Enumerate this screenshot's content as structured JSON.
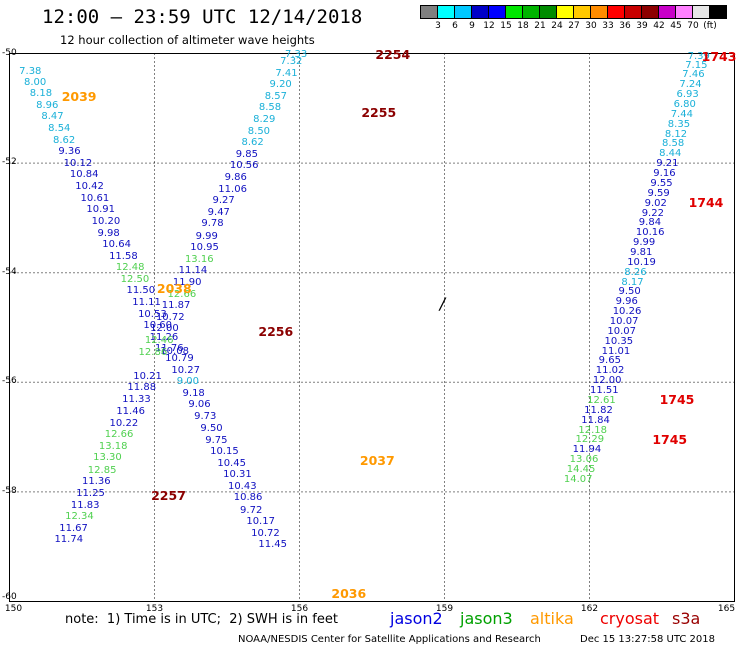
{
  "title": "12:00 — 23:59 UTC 12/14/2018",
  "subtitle": "12 hour collection of altimeter wave heights",
  "colorbar": {
    "colors": [
      "#808080",
      "#00ffff",
      "#00c8ff",
      "#0000c8",
      "#0000ff",
      "#00e600",
      "#00b400",
      "#008c00",
      "#ffff00",
      "#ffc800",
      "#ff8c00",
      "#ff0000",
      "#c80000",
      "#8c0000",
      "#c800c8",
      "#ff80ff",
      "#e6e6e6",
      "#000000"
    ],
    "labels": [
      "3",
      "6",
      "9",
      "12",
      "15",
      "18",
      "21",
      "24",
      "27",
      "30",
      "33",
      "36",
      "39",
      "42",
      "45",
      "70",
      "(ft)"
    ]
  },
  "axes": {
    "x_ticks": [
      "150",
      "153",
      "156",
      "159",
      "162",
      "165"
    ],
    "y_ticks": [
      "-50",
      "-52",
      "-54",
      "-56",
      "-58",
      "-60"
    ]
  },
  "note": "note:  1) Time is in UTC;  2) SWH is in feet",
  "legend": [
    {
      "name": "jason2",
      "color": "#0000e0"
    },
    {
      "name": "jason3",
      "color": "#00a000"
    },
    {
      "name": "altika",
      "color": "#ff9900"
    },
    {
      "name": "cryosat",
      "color": "#ee0000"
    },
    {
      "name": "s3a",
      "color": "#990000"
    }
  ],
  "footer": {
    "center": "NOAA/NESDIS Center for Satellite Applications and Research",
    "right": "Dec 15 13:27:58 UTC 2018"
  },
  "colors": {
    "cyan": "#1ab0d8",
    "blue": "#1010c0",
    "green": "#50d050",
    "orange": "#ff9900",
    "red": "#e00000",
    "darkred": "#8b0000"
  },
  "passes": [
    {
      "label": "2039",
      "color": "orange",
      "lon": 151.08,
      "lat": -50.8
    },
    {
      "label": "2038",
      "color": "orange",
      "lon": 153.05,
      "lat": -54.3
    },
    {
      "label": "2037",
      "color": "orange",
      "lon": 157.25,
      "lat": -57.43
    },
    {
      "label": "2036",
      "color": "orange",
      "lon": 156.66,
      "lat": -59.87
    },
    {
      "label": "2254",
      "color": "darkred",
      "lon": 157.57,
      "lat": -50.02
    },
    {
      "label": "2255",
      "color": "darkred",
      "lon": 157.28,
      "lat": -51.08
    },
    {
      "label": "2256",
      "color": "darkred",
      "lon": 155.15,
      "lat": -55.08
    },
    {
      "label": "2257",
      "color": "darkred",
      "lon": 152.93,
      "lat": -58.08
    },
    {
      "label": "1743",
      "color": "red",
      "lon": 164.32,
      "lat": -50.07
    },
    {
      "label": "1744",
      "color": "red",
      "lon": 164.05,
      "lat": -52.72
    },
    {
      "label": "1745",
      "color": "red",
      "lon": 163.45,
      "lat": -56.33
    },
    {
      "label": "1745",
      "color": "red",
      "lon": 163.3,
      "lat": -57.05
    }
  ],
  "tracks": [
    {
      "name": "track-2039",
      "points": [
        {
          "v": "7.38",
          "lon": 150.2,
          "lat": -50.33,
          "c": "cyan"
        },
        {
          "v": "8.00",
          "lon": 150.3,
          "lat": -50.53,
          "c": "cyan"
        },
        {
          "v": "8.18",
          "lon": 150.42,
          "lat": -50.74,
          "c": "cyan"
        },
        {
          "v": "8.96",
          "lon": 150.55,
          "lat": -50.95,
          "c": "cyan"
        },
        {
          "v": "8.47",
          "lon": 150.66,
          "lat": -51.16,
          "c": "cyan"
        },
        {
          "v": "8.54",
          "lon": 150.8,
          "lat": -51.38,
          "c": "cyan"
        },
        {
          "v": "8.62",
          "lon": 150.9,
          "lat": -51.59,
          "c": "cyan"
        },
        {
          "v": "9.36",
          "lon": 151.01,
          "lat": -51.8,
          "c": "blue"
        },
        {
          "v": "10.12",
          "lon": 151.12,
          "lat": -52.01,
          "c": "blue"
        },
        {
          "v": "10.84",
          "lon": 151.25,
          "lat": -52.22,
          "c": "blue"
        },
        {
          "v": "10.42",
          "lon": 151.36,
          "lat": -52.44,
          "c": "blue"
        },
        {
          "v": "10.61",
          "lon": 151.47,
          "lat": -52.65,
          "c": "blue"
        },
        {
          "v": "10.91",
          "lon": 151.59,
          "lat": -52.86,
          "c": "blue"
        },
        {
          "v": "10.20",
          "lon": 151.7,
          "lat": -53.07,
          "c": "blue"
        },
        {
          "v": "9.98",
          "lon": 151.82,
          "lat": -53.29,
          "c": "blue"
        },
        {
          "v": "10.64",
          "lon": 151.92,
          "lat": -53.5,
          "c": "blue"
        },
        {
          "v": "11.58",
          "lon": 152.06,
          "lat": -53.71,
          "c": "blue"
        },
        {
          "v": "12.48",
          "lon": 152.2,
          "lat": -53.92,
          "c": "green"
        },
        {
          "v": "12.50",
          "lon": 152.3,
          "lat": -54.13,
          "c": "green"
        },
        {
          "v": "11.50",
          "lon": 152.42,
          "lat": -54.34,
          "c": "blue"
        },
        {
          "v": "11.11",
          "lon": 152.54,
          "lat": -54.55,
          "c": "blue"
        },
        {
          "v": "10.53",
          "lon": 152.66,
          "lat": -54.77,
          "c": "blue"
        },
        {
          "v": "10.60",
          "lon": 152.77,
          "lat": -54.98,
          "c": "blue"
        },
        {
          "v": "11.26",
          "lon": 152.9,
          "lat": -55.19,
          "c": "blue"
        },
        {
          "v": "11.76",
          "lon": 153.01,
          "lat": -55.39,
          "c": "blue"
        },
        {
          "v": "10.08",
          "lon": 153.12,
          "lat": -55.45,
          "c": "blue"
        },
        {
          "v": "10.79",
          "lon": 153.22,
          "lat": -55.57,
          "c": "blue"
        },
        {
          "v": "10.27",
          "lon": 153.35,
          "lat": -55.79,
          "c": "blue"
        },
        {
          "v": "9.00",
          "lon": 153.46,
          "lat": -56.0,
          "c": "cyan"
        },
        {
          "v": "9.18",
          "lon": 153.58,
          "lat": -56.21,
          "c": "blue"
        },
        {
          "v": "9.06",
          "lon": 153.7,
          "lat": -56.42,
          "c": "blue"
        },
        {
          "v": "9.73",
          "lon": 153.82,
          "lat": -56.64,
          "c": "blue"
        },
        {
          "v": "9.50",
          "lon": 153.95,
          "lat": -56.86,
          "c": "blue"
        },
        {
          "v": "9.75",
          "lon": 154.05,
          "lat": -57.07,
          "c": "blue"
        },
        {
          "v": "10.15",
          "lon": 154.15,
          "lat": -57.28,
          "c": "blue"
        },
        {
          "v": "10.45",
          "lon": 154.3,
          "lat": -57.49,
          "c": "blue"
        },
        {
          "v": "10.31",
          "lon": 154.42,
          "lat": -57.7,
          "c": "blue"
        },
        {
          "v": "10.43",
          "lon": 154.52,
          "lat": -57.91,
          "c": "blue"
        },
        {
          "v": "10.86",
          "lon": 154.64,
          "lat": -58.12,
          "c": "blue"
        },
        {
          "v": "9.72",
          "lon": 154.77,
          "lat": -58.34,
          "c": "blue"
        },
        {
          "v": "10.17",
          "lon": 154.9,
          "lat": -58.55,
          "c": "blue"
        },
        {
          "v": "10.72",
          "lon": 155.0,
          "lat": -58.76,
          "c": "blue"
        },
        {
          "v": "11.45",
          "lon": 155.15,
          "lat": -58.97,
          "c": "blue"
        }
      ]
    },
    {
      "name": "track-2254",
      "points": [
        {
          "v": "7.33",
          "lon": 155.7,
          "lat": -50.03,
          "c": "cyan"
        },
        {
          "v": "7.32",
          "lon": 155.6,
          "lat": -50.15,
          "c": "cyan"
        },
        {
          "v": "7.41",
          "lon": 155.5,
          "lat": -50.37,
          "c": "cyan"
        },
        {
          "v": "9.20",
          "lon": 155.38,
          "lat": -50.58,
          "c": "cyan"
        },
        {
          "v": "8.57",
          "lon": 155.28,
          "lat": -50.79,
          "c": "cyan"
        },
        {
          "v": "8.58",
          "lon": 155.16,
          "lat": -51.0,
          "c": "cyan"
        },
        {
          "v": "8.29",
          "lon": 155.04,
          "lat": -51.22,
          "c": "cyan"
        },
        {
          "v": "8.50",
          "lon": 154.93,
          "lat": -51.43,
          "c": "cyan"
        },
        {
          "v": "8.62",
          "lon": 154.8,
          "lat": -51.64,
          "c": "cyan"
        },
        {
          "v": "9.85",
          "lon": 154.68,
          "lat": -51.85,
          "c": "blue"
        },
        {
          "v": "10.56",
          "lon": 154.56,
          "lat": -52.06,
          "c": "blue"
        },
        {
          "v": "9.86",
          "lon": 154.45,
          "lat": -52.28,
          "c": "blue"
        },
        {
          "v": "11.06",
          "lon": 154.32,
          "lat": -52.49,
          "c": "blue"
        },
        {
          "v": "9.27",
          "lon": 154.2,
          "lat": -52.7,
          "c": "blue"
        },
        {
          "v": "9.47",
          "lon": 154.1,
          "lat": -52.91,
          "c": "blue"
        },
        {
          "v": "9.78",
          "lon": 153.97,
          "lat": -53.12,
          "c": "blue"
        },
        {
          "v": "9.99",
          "lon": 153.85,
          "lat": -53.34,
          "c": "blue"
        },
        {
          "v": "10.95",
          "lon": 153.74,
          "lat": -53.55,
          "c": "blue"
        },
        {
          "v": "13.16",
          "lon": 153.63,
          "lat": -53.76,
          "c": "green"
        },
        {
          "v": "11.14",
          "lon": 153.5,
          "lat": -53.97,
          "c": "blue"
        },
        {
          "v": "11.90",
          "lon": 153.38,
          "lat": -54.19,
          "c": "blue"
        },
        {
          "v": "12.66",
          "lon": 153.27,
          "lat": -54.4,
          "c": "green"
        },
        {
          "v": "11.87",
          "lon": 153.15,
          "lat": -54.61,
          "c": "blue"
        },
        {
          "v": "10.72",
          "lon": 153.03,
          "lat": -54.82,
          "c": "blue"
        },
        {
          "v": "12.00",
          "lon": 152.91,
          "lat": -55.03,
          "c": "blue"
        },
        {
          "v": "12.46",
          "lon": 152.8,
          "lat": -55.25,
          "c": "green"
        },
        {
          "v": "12.86",
          "lon": 152.67,
          "lat": -55.46,
          "c": "green"
        },
        {
          "v": "10.21",
          "lon": 152.56,
          "lat": -55.9,
          "c": "blue"
        },
        {
          "v": "11.88",
          "lon": 152.44,
          "lat": -56.11,
          "c": "blue"
        },
        {
          "v": "11.33",
          "lon": 152.33,
          "lat": -56.33,
          "c": "blue"
        },
        {
          "v": "11.46",
          "lon": 152.21,
          "lat": -56.54,
          "c": "blue"
        },
        {
          "v": "10.22",
          "lon": 152.07,
          "lat": -56.76,
          "c": "blue"
        },
        {
          "v": "12.66",
          "lon": 151.97,
          "lat": -56.97,
          "c": "green"
        },
        {
          "v": "13.18",
          "lon": 151.85,
          "lat": -57.18,
          "c": "green"
        },
        {
          "v": "13.30",
          "lon": 151.73,
          "lat": -57.39,
          "c": "green"
        },
        {
          "v": "12.85",
          "lon": 151.62,
          "lat": -57.61,
          "c": "green"
        },
        {
          "v": "11.36",
          "lon": 151.5,
          "lat": -57.82,
          "c": "blue"
        },
        {
          "v": "11.25",
          "lon": 151.38,
          "lat": -58.04,
          "c": "blue"
        },
        {
          "v": "11.83",
          "lon": 151.27,
          "lat": -58.25,
          "c": "blue"
        },
        {
          "v": "12.34",
          "lon": 151.15,
          "lat": -58.46,
          "c": "green"
        },
        {
          "v": "11.67",
          "lon": 151.03,
          "lat": -58.67,
          "c": "blue"
        },
        {
          "v": "11.74",
          "lon": 150.93,
          "lat": -58.88,
          "c": "blue"
        }
      ]
    },
    {
      "name": "track-1743",
      "points": [
        {
          "v": "7.39",
          "lon": 164.03,
          "lat": -50.07,
          "c": "cyan"
        },
        {
          "v": "7.15",
          "lon": 163.98,
          "lat": -50.22,
          "c": "cyan"
        },
        {
          "v": "7.46",
          "lon": 163.92,
          "lat": -50.4,
          "c": "cyan"
        },
        {
          "v": "7.24",
          "lon": 163.86,
          "lat": -50.58,
          "c": "cyan"
        },
        {
          "v": "6.93",
          "lon": 163.8,
          "lat": -50.76,
          "c": "cyan"
        },
        {
          "v": "6.80",
          "lon": 163.74,
          "lat": -50.94,
          "c": "cyan"
        },
        {
          "v": "7.44",
          "lon": 163.68,
          "lat": -51.12,
          "c": "cyan"
        },
        {
          "v": "8.35",
          "lon": 163.62,
          "lat": -51.3,
          "c": "cyan"
        },
        {
          "v": "8.12",
          "lon": 163.56,
          "lat": -51.48,
          "c": "cyan"
        },
        {
          "v": "8.58",
          "lon": 163.5,
          "lat": -51.66,
          "c": "cyan"
        },
        {
          "v": "8.44",
          "lon": 163.44,
          "lat": -51.84,
          "c": "cyan"
        },
        {
          "v": "9.21",
          "lon": 163.38,
          "lat": -52.02,
          "c": "blue"
        },
        {
          "v": "9.16",
          "lon": 163.32,
          "lat": -52.2,
          "c": "blue"
        },
        {
          "v": "9.55",
          "lon": 163.26,
          "lat": -52.38,
          "c": "blue"
        },
        {
          "v": "9.59",
          "lon": 163.2,
          "lat": -52.56,
          "c": "blue"
        },
        {
          "v": "9.02",
          "lon": 163.14,
          "lat": -52.74,
          "c": "blue"
        },
        {
          "v": "9.22",
          "lon": 163.08,
          "lat": -52.92,
          "c": "blue"
        },
        {
          "v": "9.84",
          "lon": 163.02,
          "lat": -53.1,
          "c": "blue"
        },
        {
          "v": "10.16",
          "lon": 162.96,
          "lat": -53.28,
          "c": "blue"
        },
        {
          "v": "9.99",
          "lon": 162.9,
          "lat": -53.46,
          "c": "blue"
        },
        {
          "v": "9.81",
          "lon": 162.84,
          "lat": -53.64,
          "c": "blue"
        },
        {
          "v": "10.19",
          "lon": 162.78,
          "lat": -53.82,
          "c": "blue"
        },
        {
          "v": "8.26",
          "lon": 162.72,
          "lat": -54.0,
          "c": "cyan"
        },
        {
          "v": "8.17",
          "lon": 162.66,
          "lat": -54.18,
          "c": "cyan"
        },
        {
          "v": "9.50",
          "lon": 162.6,
          "lat": -54.36,
          "c": "blue"
        },
        {
          "v": "9.96",
          "lon": 162.54,
          "lat": -54.54,
          "c": "blue"
        },
        {
          "v": "10.26",
          "lon": 162.48,
          "lat": -54.72,
          "c": "blue"
        },
        {
          "v": "10.07",
          "lon": 162.42,
          "lat": -54.9,
          "c": "blue"
        },
        {
          "v": "10.07",
          "lon": 162.37,
          "lat": -55.08,
          "c": "blue"
        },
        {
          "v": "10.35",
          "lon": 162.31,
          "lat": -55.26,
          "c": "blue"
        },
        {
          "v": "11.01",
          "lon": 162.25,
          "lat": -55.44,
          "c": "blue"
        },
        {
          "v": "9.65",
          "lon": 162.19,
          "lat": -55.62,
          "c": "blue"
        },
        {
          "v": "11.02",
          "lon": 162.13,
          "lat": -55.8,
          "c": "blue"
        },
        {
          "v": "12.00",
          "lon": 162.07,
          "lat": -55.98,
          "c": "blue"
        },
        {
          "v": "11.51",
          "lon": 162.01,
          "lat": -56.16,
          "c": "blue"
        },
        {
          "v": "12.61",
          "lon": 161.95,
          "lat": -56.34,
          "c": "green"
        },
        {
          "v": "11.82",
          "lon": 161.89,
          "lat": -56.52,
          "c": "blue"
        },
        {
          "v": "11.84",
          "lon": 161.83,
          "lat": -56.7,
          "c": "blue"
        },
        {
          "v": "12.18",
          "lon": 161.77,
          "lat": -56.88,
          "c": "green"
        },
        {
          "v": "12.29",
          "lon": 161.71,
          "lat": -57.06,
          "c": "green"
        },
        {
          "v": "11.94",
          "lon": 161.65,
          "lat": -57.24,
          "c": "blue"
        },
        {
          "v": "13.06",
          "lon": 161.59,
          "lat": -57.42,
          "c": "green"
        },
        {
          "v": "14.45",
          "lon": 161.53,
          "lat": -57.6,
          "c": "green"
        },
        {
          "v": "14.07",
          "lon": 161.47,
          "lat": -57.78,
          "c": "green"
        }
      ]
    }
  ],
  "marker": {
    "text": "/",
    "lon": 158.9,
    "lat": -54.6
  }
}
